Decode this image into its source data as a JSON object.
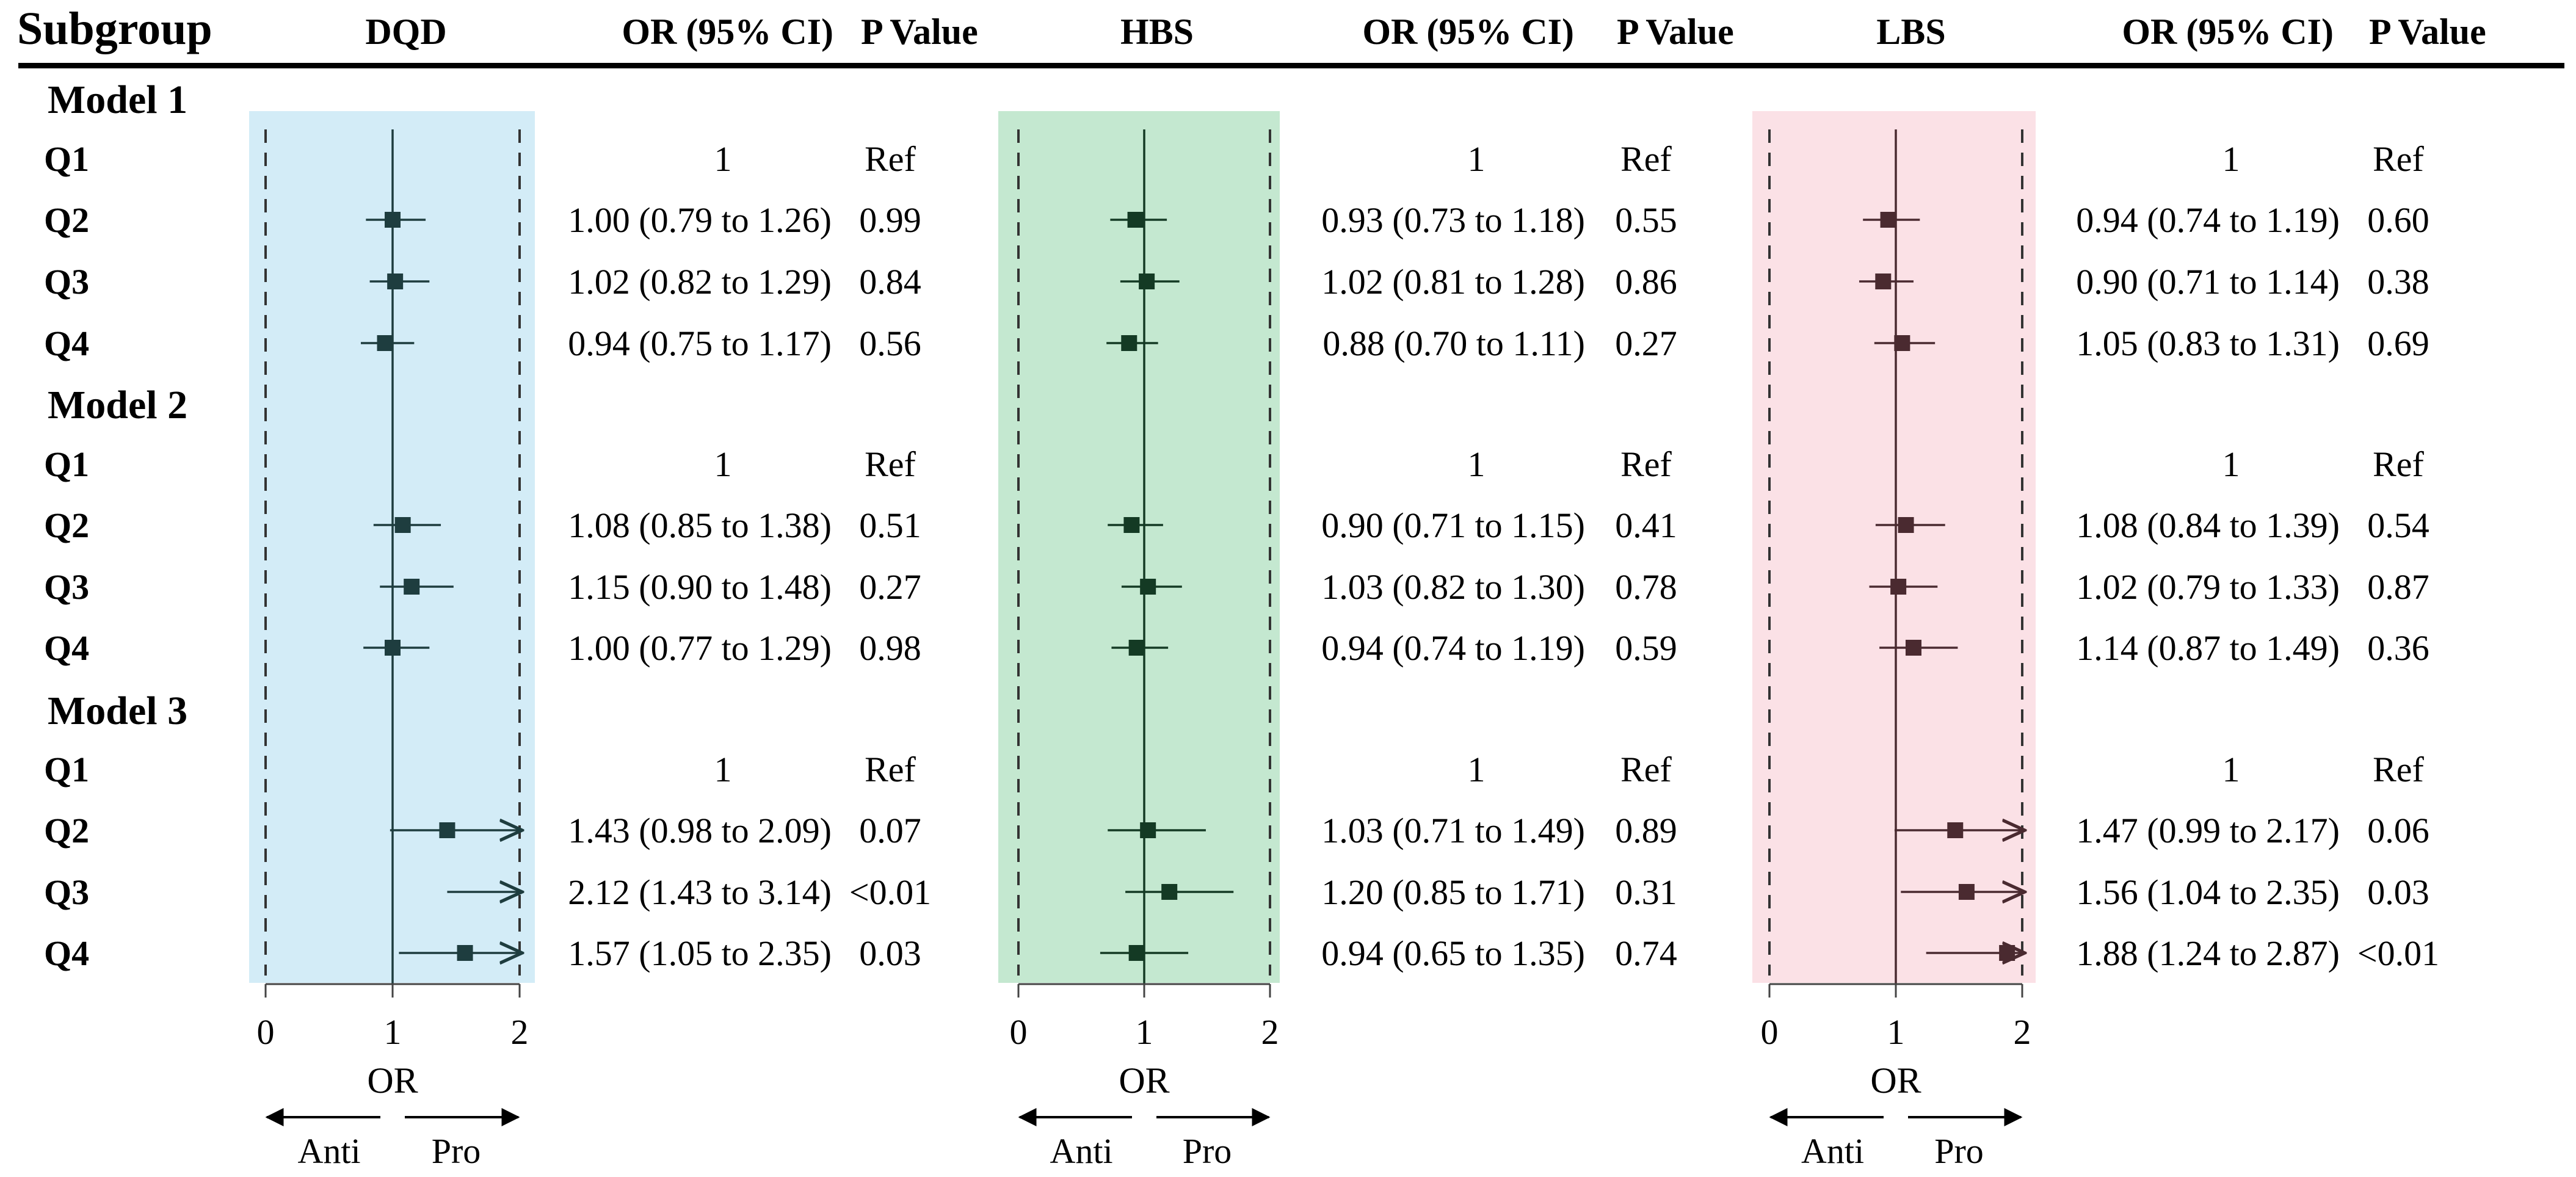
{
  "header": {
    "subgroup": "Subgroup",
    "panels": [
      {
        "name": "DQD",
        "or_label": "OR (95% CI)",
        "p_label": "P Value"
      },
      {
        "name": "HBS",
        "or_label": "OR (95% CI)",
        "p_label": "P Value"
      },
      {
        "name": "LBS",
        "or_label": "OR (95% CI)",
        "p_label": "P Value"
      }
    ]
  },
  "chart_data": {
    "type": "forest",
    "panels": [
      {
        "name": "DQD",
        "bg_color": "#d3ecf7",
        "marker_color": "#1e3d3f",
        "xlim": [
          0,
          2
        ],
        "xticks": [
          "0",
          "1",
          "2"
        ],
        "xlabel": "OR",
        "direction_left": "Anti",
        "direction_right": "Pro",
        "models": [
          {
            "label": "Model 1",
            "rows": [
              {
                "group": "Q1",
                "or": 1,
                "lo": null,
                "hi": null,
                "text": "1",
                "p": "Ref"
              },
              {
                "group": "Q2",
                "or": 1.0,
                "lo": 0.79,
                "hi": 1.26,
                "text": "1.00 (0.79 to 1.26)",
                "p": "0.99"
              },
              {
                "group": "Q3",
                "or": 1.02,
                "lo": 0.82,
                "hi": 1.29,
                "text": "1.02 (0.82 to 1.29)",
                "p": "0.84"
              },
              {
                "group": "Q4",
                "or": 0.94,
                "lo": 0.75,
                "hi": 1.17,
                "text": "0.94 (0.75 to 1.17)",
                "p": "0.56"
              }
            ]
          },
          {
            "label": "Model 2",
            "rows": [
              {
                "group": "Q1",
                "or": 1,
                "lo": null,
                "hi": null,
                "text": "1",
                "p": "Ref"
              },
              {
                "group": "Q2",
                "or": 1.08,
                "lo": 0.85,
                "hi": 1.38,
                "text": "1.08 (0.85 to 1.38)",
                "p": "0.51"
              },
              {
                "group": "Q3",
                "or": 1.15,
                "lo": 0.9,
                "hi": 1.48,
                "text": "1.15 (0.90 to 1.48)",
                "p": "0.27"
              },
              {
                "group": "Q4",
                "or": 1.0,
                "lo": 0.77,
                "hi": 1.29,
                "text": "1.00 (0.77 to 1.29)",
                "p": "0.98"
              }
            ]
          },
          {
            "label": "Model 3",
            "rows": [
              {
                "group": "Q1",
                "or": 1,
                "lo": null,
                "hi": null,
                "text": "1",
                "p": "Ref"
              },
              {
                "group": "Q2",
                "or": 1.43,
                "lo": 0.98,
                "hi": 2.09,
                "text": "1.43 (0.98 to 2.09)",
                "p": "0.07"
              },
              {
                "group": "Q3",
                "or": 2.12,
                "lo": 1.43,
                "hi": 3.14,
                "text": "2.12 (1.43 to 3.14)",
                "p": "<0.01"
              },
              {
                "group": "Q4",
                "or": 1.57,
                "lo": 1.05,
                "hi": 2.35,
                "text": "1.57 (1.05 to 2.35)",
                "p": "0.03"
              }
            ]
          }
        ]
      },
      {
        "name": "HBS",
        "bg_color": "#c4e8d0",
        "marker_color": "#143a24",
        "xlim": [
          0,
          2
        ],
        "xticks": [
          "0",
          "1",
          "2"
        ],
        "xlabel": "OR",
        "direction_left": "Anti",
        "direction_right": "Pro",
        "models": [
          {
            "label": "Model 1",
            "rows": [
              {
                "group": "Q1",
                "or": 1,
                "lo": null,
                "hi": null,
                "text": "1",
                "p": "Ref"
              },
              {
                "group": "Q2",
                "or": 0.93,
                "lo": 0.73,
                "hi": 1.18,
                "text": "0.93 (0.73 to 1.18)",
                "p": "0.55"
              },
              {
                "group": "Q3",
                "or": 1.02,
                "lo": 0.81,
                "hi": 1.28,
                "text": "1.02 (0.81 to 1.28)",
                "p": "0.86"
              },
              {
                "group": "Q4",
                "or": 0.88,
                "lo": 0.7,
                "hi": 1.11,
                "text": "0.88 (0.70 to 1.11)",
                "p": "0.27"
              }
            ]
          },
          {
            "label": "Model 2",
            "rows": [
              {
                "group": "Q1",
                "or": 1,
                "lo": null,
                "hi": null,
                "text": "1",
                "p": "Ref"
              },
              {
                "group": "Q2",
                "or": 0.9,
                "lo": 0.71,
                "hi": 1.15,
                "text": "0.90 (0.71 to 1.15)",
                "p": "0.41"
              },
              {
                "group": "Q3",
                "or": 1.03,
                "lo": 0.82,
                "hi": 1.3,
                "text": "1.03 (0.82 to 1.30)",
                "p": "0.78"
              },
              {
                "group": "Q4",
                "or": 0.94,
                "lo": 0.74,
                "hi": 1.19,
                "text": "0.94 (0.74 to 1.19)",
                "p": "0.59"
              }
            ]
          },
          {
            "label": "Model 3",
            "rows": [
              {
                "group": "Q1",
                "or": 1,
                "lo": null,
                "hi": null,
                "text": "1",
                "p": "Ref"
              },
              {
                "group": "Q2",
                "or": 1.03,
                "lo": 0.71,
                "hi": 1.49,
                "text": "1.03 (0.71 to 1.49)",
                "p": "0.89"
              },
              {
                "group": "Q3",
                "or": 1.2,
                "lo": 0.85,
                "hi": 1.71,
                "text": "1.20 (0.85 to 1.71)",
                "p": "0.31"
              },
              {
                "group": "Q4",
                "or": 0.94,
                "lo": 0.65,
                "hi": 1.35,
                "text": "0.94 (0.65 to 1.35)",
                "p": "0.74"
              }
            ]
          }
        ]
      },
      {
        "name": "LBS",
        "bg_color": "#fbe1e6",
        "marker_color": "#4a2a30",
        "xlim": [
          0,
          2
        ],
        "xticks": [
          "0",
          "1",
          "2"
        ],
        "xlabel": "OR",
        "direction_left": "Anti",
        "direction_right": "Pro",
        "models": [
          {
            "label": "Model 1",
            "rows": [
              {
                "group": "Q1",
                "or": 1,
                "lo": null,
                "hi": null,
                "text": "1",
                "p": "Ref"
              },
              {
                "group": "Q2",
                "or": 0.94,
                "lo": 0.74,
                "hi": 1.19,
                "text": "0.94 (0.74 to 1.19)",
                "p": "0.60"
              },
              {
                "group": "Q3",
                "or": 0.9,
                "lo": 0.71,
                "hi": 1.14,
                "text": "0.90 (0.71 to 1.14)",
                "p": "0.38"
              },
              {
                "group": "Q4",
                "or": 1.05,
                "lo": 0.83,
                "hi": 1.31,
                "text": "1.05 (0.83 to 1.31)",
                "p": "0.69"
              }
            ]
          },
          {
            "label": "Model 2",
            "rows": [
              {
                "group": "Q1",
                "or": 1,
                "lo": null,
                "hi": null,
                "text": "1",
                "p": "Ref"
              },
              {
                "group": "Q2",
                "or": 1.08,
                "lo": 0.84,
                "hi": 1.39,
                "text": "1.08 (0.84 to 1.39)",
                "p": "0.54"
              },
              {
                "group": "Q3",
                "or": 1.02,
                "lo": 0.79,
                "hi": 1.33,
                "text": "1.02 (0.79 to 1.33)",
                "p": "0.87"
              },
              {
                "group": "Q4",
                "or": 1.14,
                "lo": 0.87,
                "hi": 1.49,
                "text": "1.14 (0.87 to 1.49)",
                "p": "0.36"
              }
            ]
          },
          {
            "label": "Model 3",
            "rows": [
              {
                "group": "Q1",
                "or": 1,
                "lo": null,
                "hi": null,
                "text": "1",
                "p": "Ref"
              },
              {
                "group": "Q2",
                "or": 1.47,
                "lo": 0.99,
                "hi": 2.17,
                "text": "1.47 (0.99 to 2.17)",
                "p": "0.06"
              },
              {
                "group": "Q3",
                "or": 1.56,
                "lo": 1.04,
                "hi": 2.35,
                "text": "1.56 (1.04 to 2.35)",
                "p": "0.03"
              },
              {
                "group": "Q4",
                "or": 1.88,
                "lo": 1.24,
                "hi": 2.87,
                "text": "1.88 (1.24 to 2.87)",
                "p": "<0.01"
              }
            ]
          }
        ]
      }
    ]
  }
}
